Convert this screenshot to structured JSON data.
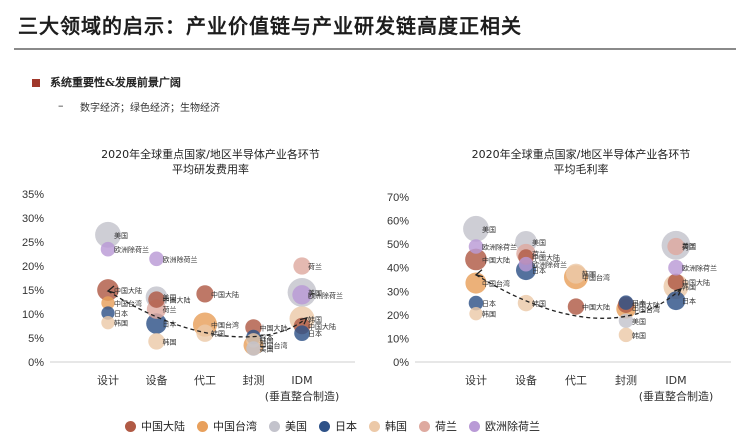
{
  "header": {
    "title": "三大领域的启示：产业价值链与产业研发链高度正相关",
    "bullet": "系统重要性&发展前景广阔",
    "sub_dash": "–",
    "sub": "数字经济；绿色经济；生物经济"
  },
  "colors": {
    "中国大陆": "#b05a45",
    "中国台湾": "#e8a05c",
    "美国": "#c3c3cc",
    "日本": "#2e5288",
    "韩国": "#ecc9a8",
    "荷兰": "#deaaa0",
    "欧洲除荷兰": "#b99ad6"
  },
  "legend": [
    "中国大陆",
    "中国台湾",
    "美国",
    "日本",
    "韩国",
    "荷兰",
    "欧洲除荷兰"
  ],
  "chart_data": [
    {
      "type": "scatter",
      "title_lines": [
        "2020年全球重点国家/地区半导体产业各环节",
        "平均研发费用率"
      ],
      "categories": [
        "设计",
        "设备",
        "代工",
        "封测",
        "IDM"
      ],
      "idm_sub": "(垂直整合制造)",
      "ylim": [
        0,
        35
      ],
      "yticks": [
        "0%",
        "5%",
        "10%",
        "15%",
        "20%",
        "25%",
        "30%",
        "35%"
      ],
      "points": [
        {
          "cat": 0,
          "country": "美国",
          "y": 26.5,
          "size": 2.2,
          "label": "美国"
        },
        {
          "cat": 0,
          "country": "欧洲除荷兰",
          "y": 23.5,
          "size": 0.3,
          "label": "欧洲除荷兰"
        },
        {
          "cat": 0,
          "country": "中国大陆",
          "y": 15,
          "size": 1.3,
          "label": "中国大陆"
        },
        {
          "cat": 0,
          "country": "中国台湾",
          "y": 12.3,
          "size": 0.2,
          "label": "中国台湾"
        },
        {
          "cat": 0,
          "country": "日本",
          "y": 10.2,
          "size": 0.2,
          "label": "日本"
        },
        {
          "cat": 0,
          "country": "韩国",
          "y": 8.2,
          "size": 0.2,
          "label": "韩国"
        },
        {
          "cat": 1,
          "country": "欧洲除荷兰",
          "y": 21.5,
          "size": 0.3,
          "label": "欧洲除荷兰"
        },
        {
          "cat": 1,
          "country": "美国",
          "y": 13.5,
          "size": 1.3,
          "label": "美国"
        },
        {
          "cat": 1,
          "country": "中国大陆",
          "y": 13,
          "size": 0.5,
          "label": "中国大陆"
        },
        {
          "cat": 1,
          "country": "荷兰",
          "y": 11,
          "size": 0.9,
          "label": "荷兰"
        },
        {
          "cat": 1,
          "country": "日本",
          "y": 8,
          "size": 1.1,
          "label": "日本"
        },
        {
          "cat": 1,
          "country": "韩国",
          "y": 4.3,
          "size": 0.5,
          "label": "韩国"
        },
        {
          "cat": 2,
          "country": "中国大陆",
          "y": 14.2,
          "size": 0.6,
          "label": "中国大陆"
        },
        {
          "cat": 2,
          "country": "中国台湾",
          "y": 7.8,
          "size": 1.8,
          "label": "中国台湾"
        },
        {
          "cat": 2,
          "country": "韩国",
          "y": 6,
          "size": 0.6,
          "label": "韩国"
        },
        {
          "cat": 3,
          "country": "中国大陆",
          "y": 7.2,
          "size": 0.5,
          "label": "中国大陆"
        },
        {
          "cat": 3,
          "country": "日本",
          "y": 5.2,
          "size": 0.3,
          "label": "日本"
        },
        {
          "cat": 3,
          "country": "韩国",
          "y": 4.5,
          "size": 0.3,
          "label": "韩国"
        },
        {
          "cat": 3,
          "country": "中国台湾",
          "y": 3.5,
          "size": 1.0,
          "label": "中国台湾"
        },
        {
          "cat": 3,
          "country": "美国",
          "y": 2.8,
          "size": 0.3,
          "label": "美国"
        },
        {
          "cat": 4,
          "country": "荷兰",
          "y": 20,
          "size": 0.6,
          "label": "荷兰"
        },
        {
          "cat": 4,
          "country": "美国",
          "y": 14.5,
          "size": 3.0,
          "label": "美国"
        },
        {
          "cat": 4,
          "country": "欧洲除荷兰",
          "y": 14,
          "size": 0.9,
          "label": "欧洲除荷兰"
        },
        {
          "cat": 4,
          "country": "韩国",
          "y": 9,
          "size": 2.0,
          "label": "韩国"
        },
        {
          "cat": 4,
          "country": "中国大陆",
          "y": 7.5,
          "size": 0.5,
          "label": "中国大陆"
        },
        {
          "cat": 4,
          "country": "日本",
          "y": 6,
          "size": 0.4,
          "label": "日本"
        }
      ],
      "trend": [
        [
          0,
          14.8
        ],
        [
          1.8,
          3.2
        ],
        [
          3.4,
          3.2
        ],
        [
          4.1,
          9.2
        ]
      ]
    },
    {
      "type": "scatter",
      "title_lines": [
        "2020年全球重点国家/地区半导体产业各环节",
        "平均毛利率"
      ],
      "categories": [
        "设计",
        "设备",
        "代工",
        "封测",
        "IDM"
      ],
      "idm_sub": "(垂直整合制造)",
      "ylim": [
        0,
        70
      ],
      "yticks": [
        "0%",
        "10%",
        "20%",
        "30%",
        "40%",
        "50%",
        "60%",
        "70%"
      ],
      "points": [
        {
          "cat": 0,
          "country": "美国",
          "y": 56.5,
          "size": 2.2,
          "label": "美国"
        },
        {
          "cat": 0,
          "country": "欧洲除荷兰",
          "y": 49,
          "size": 0.3,
          "label": "欧洲除荷兰"
        },
        {
          "cat": 0,
          "country": "中国大陆",
          "y": 43.5,
          "size": 1.3,
          "label": "中国大陆"
        },
        {
          "cat": 0,
          "country": "中国台湾",
          "y": 33.5,
          "size": 1.2,
          "label": "中国台湾"
        },
        {
          "cat": 0,
          "country": "日本",
          "y": 25,
          "size": 0.3,
          "label": "日本"
        },
        {
          "cat": 0,
          "country": "韩国",
          "y": 20.5,
          "size": 0.2,
          "label": "韩国"
        },
        {
          "cat": 1,
          "country": "美国",
          "y": 51,
          "size": 1.3,
          "label": "美国"
        },
        {
          "cat": 1,
          "country": "荷兰",
          "y": 46,
          "size": 0.9,
          "label": "荷兰"
        },
        {
          "cat": 1,
          "country": "中国大陆",
          "y": 44.5,
          "size": 0.4,
          "label": "中国大陆"
        },
        {
          "cat": 1,
          "country": "欧洲除荷兰",
          "y": 41.5,
          "size": 0.3,
          "label": "欧洲除荷兰"
        },
        {
          "cat": 1,
          "country": "日本",
          "y": 39,
          "size": 1.0,
          "label": "日本"
        },
        {
          "cat": 1,
          "country": "韩国",
          "y": 25,
          "size": 0.5,
          "label": "韩国"
        },
        {
          "cat": 2,
          "country": "韩国",
          "y": 37.5,
          "size": 1.0,
          "label": "韩国"
        },
        {
          "cat": 2,
          "country": "中国台湾",
          "y": 36,
          "size": 1.8,
          "label": "中国台湾"
        },
        {
          "cat": 2,
          "country": "中国大陆",
          "y": 23.5,
          "size": 0.5,
          "label": "中国大陆"
        },
        {
          "cat": 3,
          "country": "日本",
          "y": 25.2,
          "size": 0.3,
          "label": "日本"
        },
        {
          "cat": 3,
          "country": "中国大陆",
          "y": 24.3,
          "size": 0.5,
          "label": "中国大陆"
        },
        {
          "cat": 3,
          "country": "中国台湾",
          "y": 22.5,
          "size": 0.9,
          "label": "中国台湾"
        },
        {
          "cat": 3,
          "country": "美国",
          "y": 17.5,
          "size": 0.3,
          "label": "美国"
        },
        {
          "cat": 3,
          "country": "韩国",
          "y": 11.5,
          "size": 0.3,
          "label": "韩国"
        },
        {
          "cat": 4,
          "country": "美国",
          "y": 49.5,
          "size": 3.0,
          "label": "美国"
        },
        {
          "cat": 4,
          "country": "荷兰",
          "y": 49,
          "size": 0.6,
          "label": "荷兰"
        },
        {
          "cat": 4,
          "country": "欧洲除荷兰",
          "y": 40,
          "size": 0.4,
          "label": "欧洲除荷兰"
        },
        {
          "cat": 4,
          "country": "中国大陆",
          "y": 34,
          "size": 0.5,
          "label": "中国大陆"
        },
        {
          "cat": 4,
          "country": "韩国",
          "y": 32,
          "size": 2.0,
          "label": "韩国"
        },
        {
          "cat": 4,
          "country": "日本",
          "y": 26,
          "size": 0.8,
          "label": "日本"
        }
      ],
      "trend": [
        [
          0,
          37
        ],
        [
          1.8,
          13.5
        ],
        [
          3.2,
          13.5
        ],
        [
          4.1,
          31
        ]
      ]
    }
  ]
}
